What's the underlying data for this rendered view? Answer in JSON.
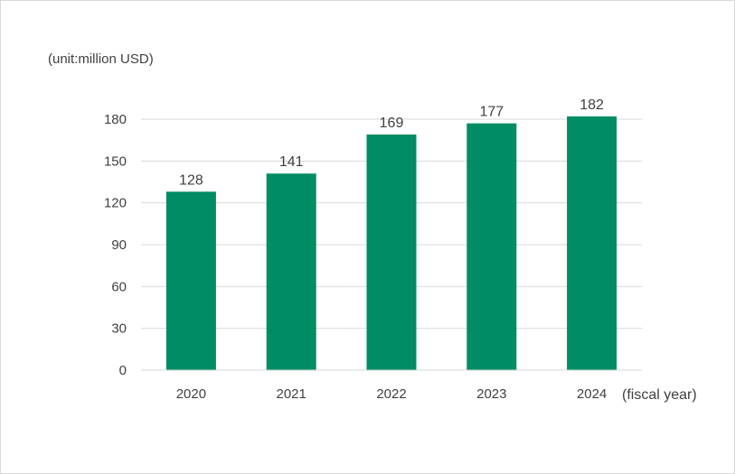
{
  "chart_data": {
    "type": "bar",
    "title": "",
    "ylabel": "(unit:million USD)",
    "xlabel": "(fiscal year)",
    "categories": [
      "2020",
      "2021",
      "2022",
      "2023",
      "2024"
    ],
    "values": [
      128,
      141,
      169,
      177,
      182
    ],
    "yticks": [
      0,
      30,
      60,
      90,
      120,
      150,
      180
    ],
    "ylim": [
      0,
      180
    ],
    "grid": true,
    "legend": "none",
    "bar_color": "#008C64",
    "gridline_color": "#d9d9d9"
  }
}
